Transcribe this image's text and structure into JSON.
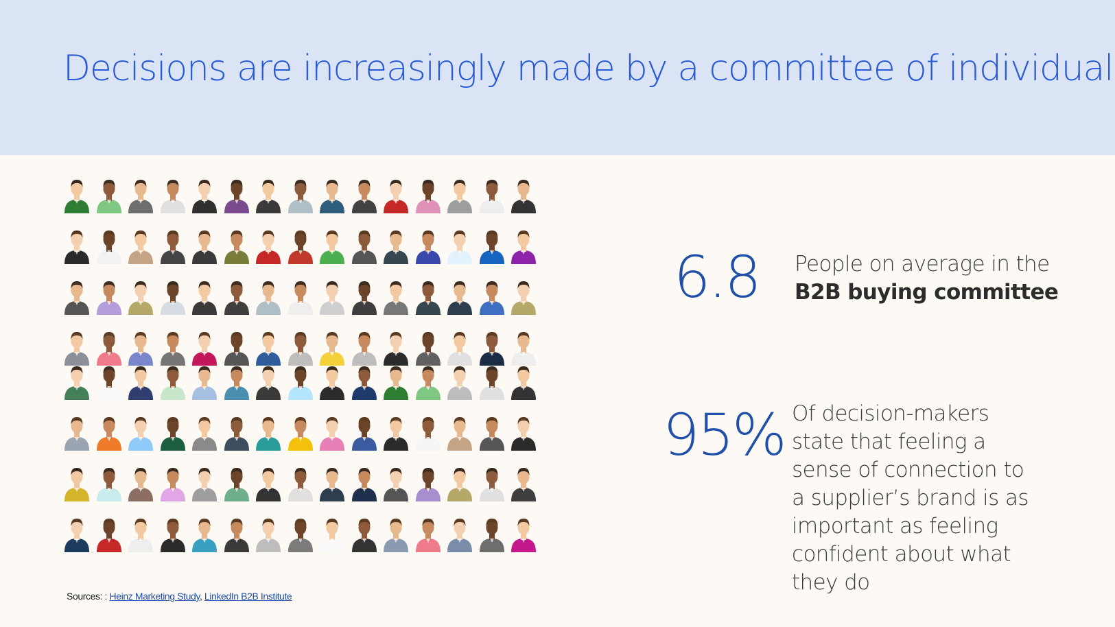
{
  "header": {
    "title": "Decisions are increasingly made by a committee of individuals",
    "background": "#dbe4f5",
    "title_color": "#2a5bd7"
  },
  "people_grid": {
    "rows": 8,
    "columns": 15,
    "icon": "person-avatar-icon",
    "shirt_colors": [
      "#2e7d32",
      "#81c784",
      "#6e6e6e",
      "#e0e0e0",
      "#2f2f2f",
      "#7b4a8c",
      "#3a3a3a",
      "#b0bec5",
      "#2f5d7c",
      "#424242",
      "#c62828",
      "#e091b8",
      "#9e9e9e",
      "#eeeeee",
      "#333333",
      "#2b2b2b",
      "#f2f2f2",
      "#c4a484",
      "#444444",
      "#3a3a3a",
      "#7a7d3a",
      "#c62828",
      "#c0392b",
      "#4caf50",
      "#555555",
      "#37474f",
      "#3949ab",
      "#e3f2fd",
      "#1565c0",
      "#8e24aa",
      "#555555",
      "#b39ddb",
      "#b5a96a",
      "#d7dde3",
      "#3a3a3a",
      "#3f3f3f",
      "#b0bec5",
      "#eeeeee",
      "#cfcfcf",
      "#3e3e3e",
      "#777777",
      "#37474f",
      "#2f3e4e",
      "#3f6fc0",
      "#b5a96a",
      "#8a8f98",
      "#ef7b8a",
      "#7986cb",
      "#757575",
      "#c2185b",
      "#555555",
      "#2f5d9c",
      "#bdbdbd",
      "#f4d13a",
      "#bdbdbd",
      "#2b2b2b",
      "#616161",
      "#e0e0e0",
      "#1b2d45",
      "#eeeeee",
      "#43805a",
      "#fafafa",
      "#2f3e6e",
      "#c8e6c9",
      "#a5c0e0",
      "#4a8fb0",
      "#3a3a3a",
      "#b3e5fc",
      "#2b2b2b",
      "#1f3b6e",
      "#2e7d32",
      "#81c784",
      "#bdbdbd",
      "#e0e0e0",
      "#333333",
      "#9aa5b1",
      "#ef7b2a",
      "#90caf9",
      "#1b5e40",
      "#8a8a8a",
      "#3f4e5e",
      "#2a9d9b",
      "#f4c20d",
      "#e57fb5",
      "#3a5ba0",
      "#2b2b2b",
      "#f5f5f5",
      "#c4a484",
      "#555555",
      "#2b2b2b",
      "#d4b52a",
      "#c8ecec",
      "#8d6e63",
      "#e1a6e6",
      "#9e9e9e",
      "#6fae8c",
      "#333333",
      "#e0e0e0",
      "#2f3e4e",
      "#1f2f4e",
      "#555555",
      "#a58fcf",
      "#b5a96a",
      "#e0e0e0",
      "#3f3f3f",
      "#1b3b5e",
      "#c62828",
      "#eeeeee",
      "#2b2b2b",
      "#3aa0c0",
      "#3a3a3a",
      "#bdbdbd",
      "#7b7b7b",
      "#fafafa",
      "#333333",
      "#8a9bb1",
      "#ef7b8a",
      "#7b8baa",
      "#6e6e6e",
      "#c2188b"
    ]
  },
  "stats": [
    {
      "number": "6.8",
      "text_line1": "People on average in the",
      "text_bold": "B2B buying committee"
    },
    {
      "number": "95%",
      "text": "Of decision-makers state that feeling a sense of connection to a supplier’s brand is as important as feeling confident about what they do"
    }
  ],
  "sources": {
    "prefix": "Sources: : ",
    "link1": "Heinz Marketing Study",
    "separator": ", ",
    "link2": "LinkedIn B2B Institute"
  },
  "colors": {
    "accent": "#1f4fa8",
    "page_background": "#fdfaf5"
  }
}
